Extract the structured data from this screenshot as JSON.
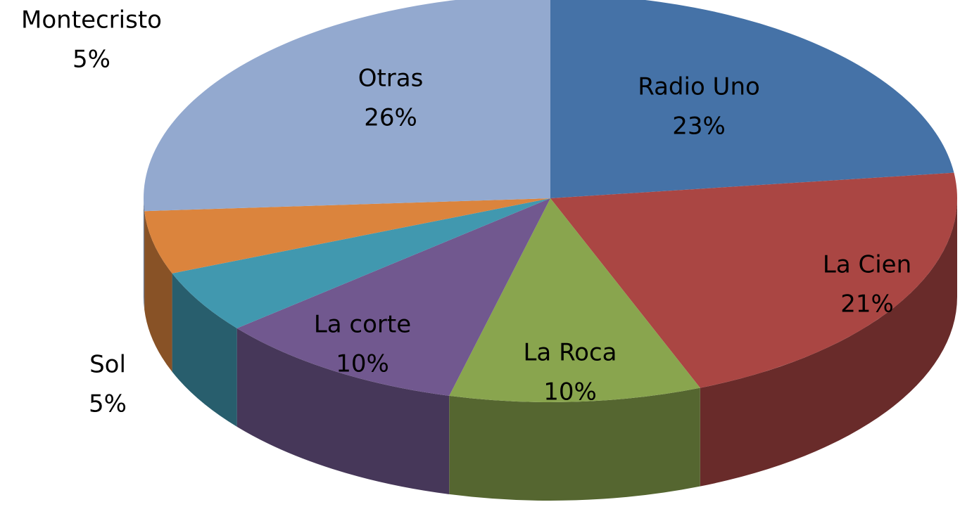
{
  "chart_data": {
    "type": "pie",
    "categories": [
      "Radio Uno",
      "La Cien",
      "La Roca",
      "La corte",
      "Sol",
      "Montecristo",
      "Otras"
    ],
    "values": [
      23,
      21,
      10,
      10,
      5,
      5,
      26
    ],
    "value_labels": [
      "23%",
      "21%",
      "10%",
      "10%",
      "5%",
      "5%",
      "26%"
    ],
    "colors": [
      "#4572a7",
      "#aa4643",
      "#89a54e",
      "#71588f",
      "#4198af",
      "#db843d",
      "#93a9cf"
    ],
    "three_d": true
  }
}
